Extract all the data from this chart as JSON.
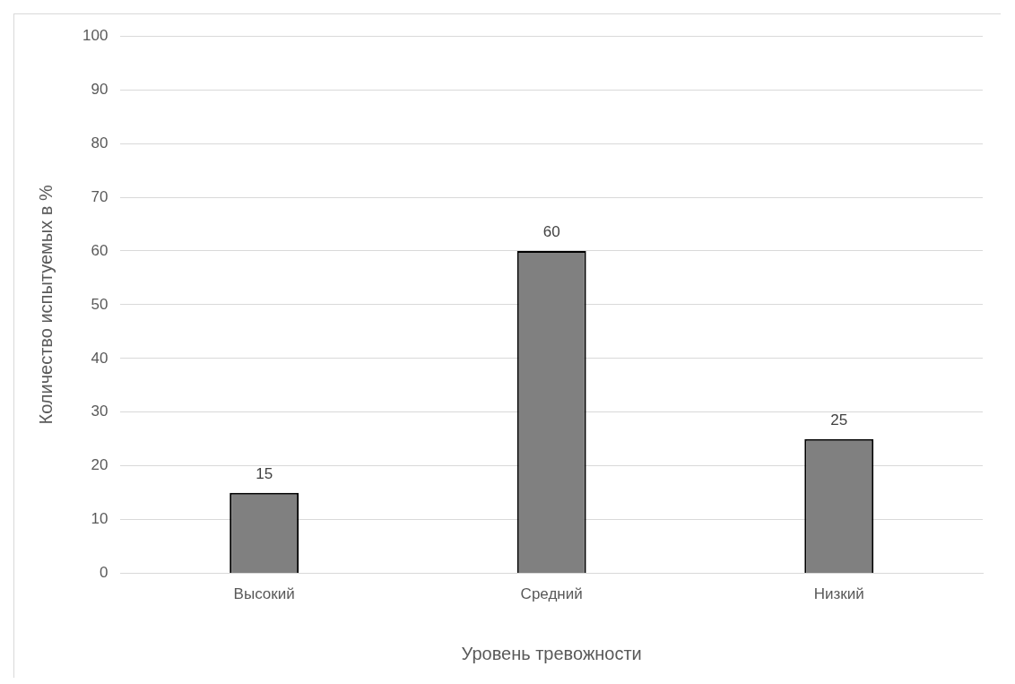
{
  "chart_data": {
    "type": "bar",
    "xlabel": "Уровень тревожности",
    "ylabel": "Количество испытуемых в %",
    "categories": [
      "Высокий",
      "Средний",
      "Низкий"
    ],
    "values": [
      15,
      60,
      25
    ],
    "color": "#808080",
    "ylim": [
      0,
      100
    ],
    "yticks": [
      0,
      10,
      20,
      30,
      40,
      50,
      60,
      70,
      80,
      90,
      100
    ],
    "grid": "y",
    "data_labels": true,
    "legend": false
  }
}
